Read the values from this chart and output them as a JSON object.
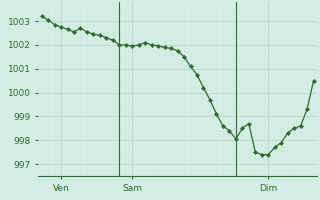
{
  "background_color": "#d4ede4",
  "line_color": "#2d6a2d",
  "marker_color": "#2d6a2d",
  "grid_major_color": "#b8d8cc",
  "grid_minor_color": "#cce8dc",
  "ylim": [
    996.5,
    1003.8
  ],
  "yticks": [
    997,
    998,
    999,
    1000,
    1001,
    1002,
    1003
  ],
  "x_values": [
    0,
    1,
    2,
    3,
    4,
    5,
    6,
    7,
    8,
    9,
    10,
    11,
    12,
    13,
    14,
    15,
    16,
    17,
    18,
    19,
    20,
    21,
    22,
    23,
    24,
    25,
    26,
    27,
    28,
    29,
    30,
    31,
    32,
    33,
    34,
    35,
    36,
    37,
    38,
    39,
    40,
    41,
    42
  ],
  "y_values": [
    1003.2,
    1003.05,
    1002.85,
    1002.75,
    1002.65,
    1002.55,
    1002.7,
    1002.55,
    1002.45,
    1002.4,
    1002.3,
    1002.2,
    1002.0,
    1002.0,
    1001.95,
    1002.0,
    1002.1,
    1002.0,
    1001.95,
    1001.9,
    1001.85,
    1001.75,
    1001.5,
    1001.1,
    1000.75,
    1000.2,
    999.7,
    999.1,
    998.6,
    998.4,
    998.05,
    998.5,
    998.7,
    997.5,
    997.4,
    997.4,
    997.7,
    997.9,
    998.3,
    998.5,
    998.6,
    999.3,
    1000.5
  ],
  "vline_positions": [
    12,
    30
  ],
  "xtick_positions": [
    3,
    14,
    35
  ],
  "xtick_labels": [
    "Ven",
    "Sam",
    "Dim"
  ],
  "xlim": [
    -0.5,
    42.5
  ],
  "tick_fontsize": 6.5,
  "marker_size": 2.2,
  "linewidth": 0.9
}
